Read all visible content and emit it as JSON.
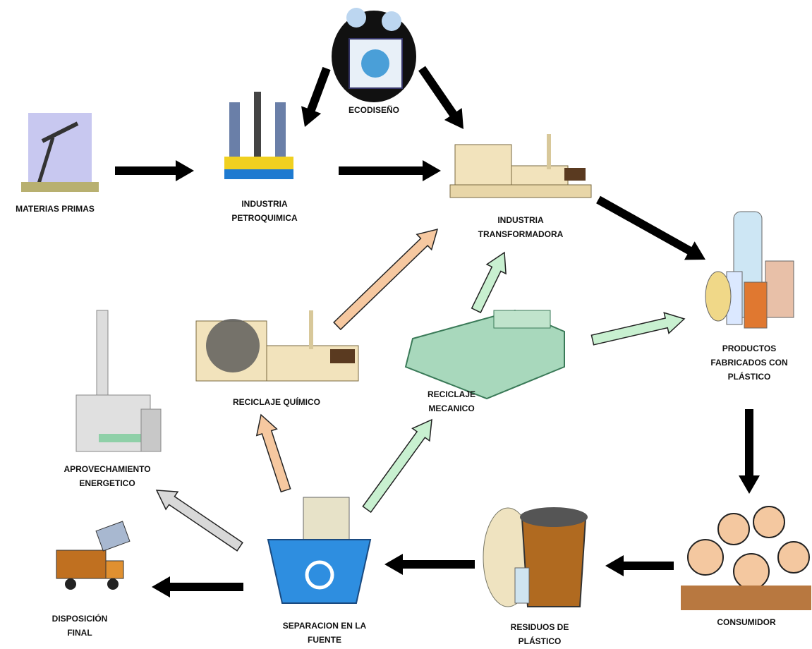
{
  "nodes": [
    {
      "label": [
        "MATERIAS PRIMAS"
      ]
    },
    {
      "label": [
        "INDUSTRIA",
        "PETROQUIMICA"
      ]
    },
    {
      "label": [
        "ECODISEÑO"
      ]
    },
    {
      "label": [
        "INDUSTRIA",
        "TRANSFORMADORA"
      ]
    },
    {
      "label": [
        "PRODUCTOS",
        "FABRICADOS CON",
        "PLÁSTICO"
      ]
    },
    {
      "label": [
        "CONSUMIDOR"
      ]
    },
    {
      "label": [
        "RESIDUOS DE",
        "PLÁSTICO"
      ]
    },
    {
      "label": [
        "SEPARACION EN LA",
        "FUENTE"
      ]
    },
    {
      "label": [
        "DISPOSICIÓN",
        "FINAL"
      ]
    },
    {
      "label": [
        "APROVECHAMIENTO",
        "ENERGETICO"
      ]
    },
    {
      "label": [
        "RECICLAJE QUÍMICO"
      ]
    },
    {
      "label": [
        "RECICLAJE",
        "MECANICO"
      ]
    }
  ]
}
